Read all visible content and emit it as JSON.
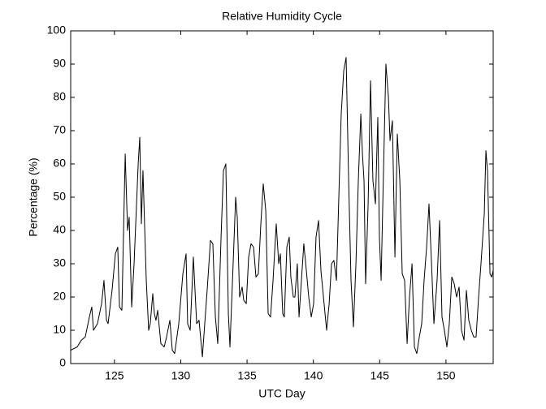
{
  "chart_data": {
    "type": "line",
    "title": "Relative Humidity Cycle",
    "xlabel": "UTC Day",
    "ylabel": "Percentage (%)",
    "xlim": [
      121.7,
      153.56
    ],
    "ylim": [
      0,
      100
    ],
    "xticks": [
      125,
      130,
      135,
      140,
      145,
      150
    ],
    "yticks": [
      0,
      10,
      20,
      30,
      40,
      50,
      60,
      70,
      80,
      90,
      100
    ],
    "x": [
      121.7,
      122.19,
      122.5,
      122.8,
      123.11,
      123.29,
      123.42,
      123.72,
      124.03,
      124.21,
      124.4,
      124.52,
      124.82,
      125.07,
      125.25,
      125.38,
      125.56,
      125.81,
      125.99,
      126.11,
      126.3,
      126.48,
      126.79,
      126.91,
      127.03,
      127.15,
      127.4,
      127.58,
      127.7,
      127.89,
      128.01,
      128.13,
      128.26,
      128.5,
      128.75,
      128.93,
      129.18,
      129.36,
      129.54,
      129.85,
      130.16,
      130.4,
      130.52,
      130.71,
      130.95,
      131.2,
      131.38,
      131.63,
      131.99,
      132.24,
      132.42,
      132.61,
      132.79,
      133.04,
      133.22,
      133.4,
      133.59,
      133.71,
      133.95,
      134.14,
      134.26,
      134.44,
      134.63,
      134.75,
      134.94,
      135.12,
      135.3,
      135.49,
      135.67,
      135.85,
      136.04,
      136.22,
      136.41,
      136.59,
      136.77,
      136.96,
      137.2,
      137.39,
      137.51,
      137.69,
      137.81,
      138.0,
      138.18,
      138.3,
      138.49,
      138.61,
      138.79,
      138.92,
      139.1,
      139.28,
      139.47,
      139.65,
      139.84,
      140.02,
      140.2,
      140.39,
      140.57,
      140.76,
      141.0,
      141.19,
      141.37,
      141.55,
      141.74,
      141.92,
      142.1,
      142.29,
      142.47,
      142.66,
      142.84,
      143.02,
      143.21,
      143.39,
      143.58,
      143.7,
      143.82,
      143.94,
      144.13,
      144.31,
      144.49,
      144.68,
      144.86,
      144.98,
      145.11,
      145.29,
      145.47,
      145.66,
      145.78,
      145.96,
      146.15,
      146.33,
      146.52,
      146.7,
      146.88,
      147.07,
      147.25,
      147.44,
      147.62,
      147.8,
      147.99,
      148.17,
      148.35,
      148.54,
      148.72,
      148.91,
      149.09,
      149.33,
      149.52,
      149.7,
      149.88,
      150.07,
      150.25,
      150.44,
      150.62,
      150.8,
      150.99,
      151.17,
      151.36,
      151.54,
      151.72,
      151.91,
      152.09,
      152.27,
      152.46,
      152.64,
      152.89,
      153.01,
      153.13,
      153.32,
      153.44,
      153.56
    ],
    "series": [
      {
        "name": "Relative Humidity",
        "color": "#000000",
        "values": [
          4,
          5,
          7,
          8,
          14,
          17,
          10,
          12,
          18,
          25,
          13,
          12,
          22,
          33,
          35,
          17,
          16,
          63,
          40,
          44,
          17,
          30,
          60,
          68,
          42,
          58,
          25,
          10,
          12,
          21,
          15,
          13,
          16,
          6,
          5,
          8,
          13,
          4,
          3,
          12,
          27,
          33,
          12,
          10,
          32,
          12,
          13,
          2,
          22,
          37,
          36,
          14,
          6,
          38,
          58,
          60,
          15,
          5,
          30,
          50,
          44,
          20,
          23,
          19,
          18,
          32,
          36,
          35,
          26,
          27,
          42,
          54,
          46,
          15,
          14,
          25,
          42,
          30,
          33,
          15,
          14,
          35,
          38,
          26,
          20,
          20,
          30,
          14,
          25,
          36,
          28,
          20,
          14,
          18,
          38,
          43,
          28,
          20,
          10,
          18,
          30,
          31,
          25,
          50,
          75,
          88,
          92,
          55,
          25,
          11,
          30,
          55,
          75,
          63,
          55,
          24,
          48,
          85,
          55,
          48,
          74,
          38,
          25,
          58,
          90,
          80,
          67,
          73,
          32,
          69,
          55,
          27,
          25,
          6,
          20,
          30,
          5,
          3,
          8,
          12,
          25,
          35,
          48,
          30,
          12,
          25,
          43,
          14,
          10,
          5,
          12,
          26,
          24,
          20,
          23,
          10,
          7,
          22,
          13,
          10,
          8,
          8,
          20,
          30,
          45,
          64,
          58,
          27,
          26,
          28
        ]
      }
    ]
  }
}
